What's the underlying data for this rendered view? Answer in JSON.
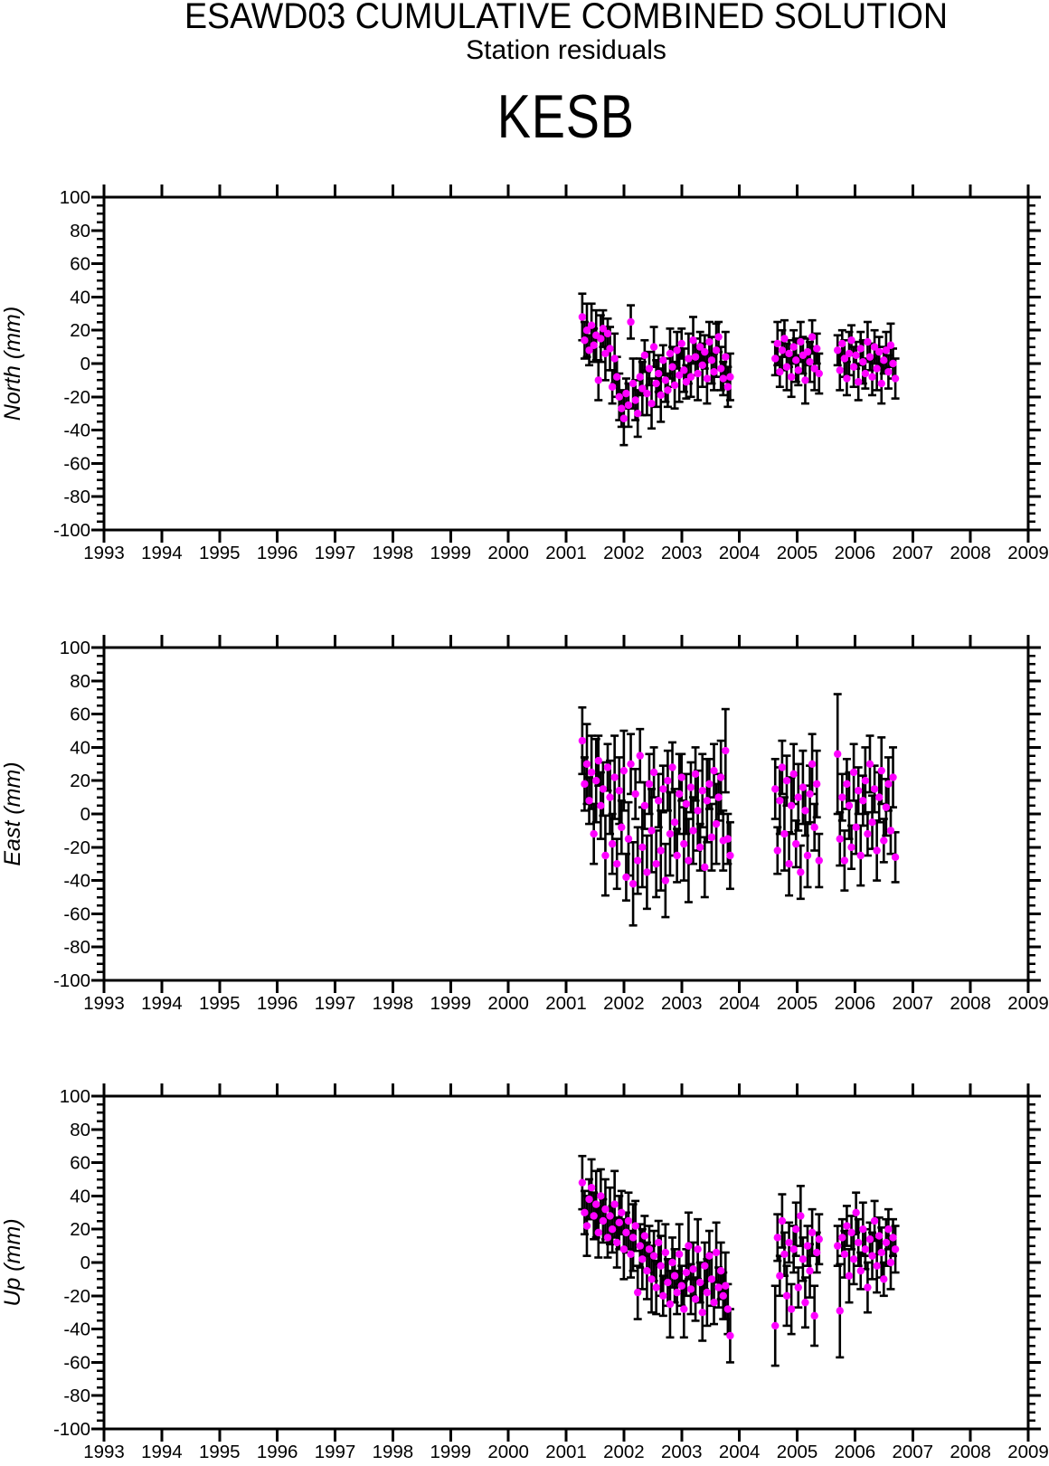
{
  "header": {
    "title": "ESAWD03 CUMULATIVE COMBINED SOLUTION",
    "subtitle": "Station residuals",
    "station": "KESB"
  },
  "colors": {
    "marker": "#ff00ff",
    "axis": "#000000",
    "background": "#ffffff"
  },
  "axes": {
    "xlim": [
      1993,
      2009
    ],
    "ylim": [
      -100,
      100
    ],
    "years": [
      1993,
      1994,
      1995,
      1996,
      1997,
      1998,
      1999,
      2000,
      2001,
      2002,
      2003,
      2004,
      2005,
      2006,
      2007,
      2008,
      2009
    ],
    "yticks": [
      -100,
      -80,
      -60,
      -40,
      -20,
      0,
      20,
      40,
      60,
      80,
      100
    ],
    "ytick_step": 20,
    "yminor_step": 5,
    "grid": "off",
    "legend": "none"
  },
  "chart_data": [
    {
      "type": "scatter",
      "id": "north",
      "ylabel": "North (mm)",
      "units": "mm",
      "marker": "circle-with-errorbar",
      "clusters": [
        {
          "t0": 2001.28,
          "dt": 0.04,
          "values": [
            28,
            14,
            20,
            8,
            23,
            11,
            17,
            -10,
            15,
            21,
            6,
            18,
            9,
            -14,
            3,
            -8,
            -20,
            -27,
            -33,
            -18,
            -25,
            25,
            -12,
            -22,
            -30,
            -8,
            -15,
            5,
            -18,
            -3,
            -24,
            10,
            -12,
            -6,
            -19,
            2,
            -10,
            -16,
            6,
            -2,
            -13,
            8,
            -7,
            12,
            -4,
            -11,
            3,
            -8,
            14,
            4,
            -6,
            10,
            -1,
            7,
            -9,
            13,
            2,
            -5,
            8,
            16,
            -3,
            -9,
            4,
            -14,
            -8
          ],
          "sigmas": [
            14,
            11,
            16,
            9,
            13,
            10,
            15,
            12,
            14,
            11,
            16,
            9,
            13,
            10,
            15,
            12,
            14,
            11,
            16,
            9,
            13,
            10,
            15,
            12,
            14,
            11,
            16,
            9,
            13,
            10,
            15,
            12,
            14,
            11,
            16,
            9,
            13,
            10,
            15,
            12,
            14,
            11,
            16,
            9,
            13,
            10,
            15,
            12,
            14,
            11,
            16,
            9,
            13,
            10,
            15,
            12,
            14,
            11,
            16,
            9,
            13,
            10,
            15,
            12,
            14
          ]
        },
        {
          "t0": 2004.62,
          "dt": 0.04,
          "values": [
            3,
            12,
            -5,
            8,
            15,
            -2,
            6,
            -8,
            10,
            2,
            -4,
            13,
            5,
            -10,
            7,
            1,
            16,
            -3,
            9,
            -6
          ],
          "sigmas": [
            10,
            13,
            9,
            12,
            11,
            14,
            8,
            12,
            10,
            13,
            9,
            12,
            11,
            14,
            8,
            12,
            10,
            13,
            9,
            12
          ]
        },
        {
          "t0": 2005.7,
          "dt": 0.04,
          "values": [
            8,
            -4,
            12,
            3,
            -9,
            6,
            14,
            -2,
            5,
            -11,
            9,
            1,
            -6,
            13,
            4,
            -8,
            10,
            -3,
            7,
            -12,
            2,
            8,
            -5,
            11,
            0,
            -9
          ],
          "sigmas": [
            9,
            12,
            8,
            11,
            10,
            13,
            9,
            12,
            8,
            11,
            10,
            13,
            9,
            12,
            8,
            11,
            10,
            13,
            9,
            12,
            8,
            11,
            10,
            13,
            9,
            12
          ]
        }
      ]
    },
    {
      "type": "scatter",
      "id": "east",
      "ylabel": "East (mm)",
      "units": "mm",
      "marker": "circle-with-errorbar",
      "clusters": [
        {
          "t0": 2001.28,
          "dt": 0.04,
          "values": [
            44,
            18,
            30,
            8,
            25,
            -12,
            20,
            32,
            5,
            15,
            -25,
            28,
            10,
            -18,
            22,
            -30,
            14,
            -8,
            26,
            -38,
            -15,
            30,
            -42,
            12,
            -28,
            35,
            -20,
            5,
            -35,
            18,
            -10,
            25,
            -30,
            8,
            -22,
            15,
            -40,
            20,
            -12,
            28,
            -5,
            -25,
            12,
            22,
            -18,
            6,
            -28,
            16,
            -10,
            24,
            2,
            -20,
            14,
            -32,
            8,
            18,
            -14,
            26,
            -6,
            10,
            22,
            -16,
            38,
            -15,
            -25
          ],
          "sigmas": [
            20,
            16,
            24,
            14,
            22,
            18,
            25,
            15,
            20,
            16,
            24,
            14,
            22,
            18,
            25,
            15,
            20,
            16,
            24,
            14,
            22,
            18,
            25,
            15,
            20,
            16,
            24,
            14,
            22,
            18,
            25,
            15,
            20,
            16,
            24,
            14,
            22,
            18,
            25,
            15,
            20,
            16,
            24,
            14,
            22,
            18,
            25,
            15,
            20,
            16,
            24,
            14,
            22,
            18,
            25,
            15,
            20,
            16,
            24,
            14,
            22,
            18,
            25,
            15,
            20
          ]
        },
        {
          "t0": 2004.62,
          "dt": 0.04,
          "values": [
            15,
            -22,
            8,
            28,
            -12,
            20,
            -30,
            5,
            24,
            -18,
            10,
            -35,
            16,
            2,
            -25,
            12,
            30,
            -8,
            18,
            -28
          ],
          "sigmas": [
            18,
            14,
            20,
            16,
            22,
            15,
            19,
            17,
            18,
            14,
            20,
            16,
            22,
            15,
            19,
            17,
            18,
            14,
            20,
            16
          ]
        },
        {
          "t0": 2005.7,
          "dt": 0.04,
          "values": [
            36,
            -15,
            10,
            -28,
            18,
            5,
            -20,
            25,
            -8,
            14,
            -25,
            8,
            20,
            -12,
            30,
            -5,
            15,
            -22,
            10,
            26,
            -16,
            4,
            18,
            -10,
            22,
            -26
          ],
          "sigmas": [
            36,
            16,
            14,
            18,
            15,
            20,
            13,
            17,
            16,
            14,
            18,
            15,
            20,
            13,
            17,
            16,
            14,
            18,
            15,
            20,
            13,
            17,
            16,
            14,
            18,
            15
          ]
        }
      ]
    },
    {
      "type": "scatter",
      "id": "up",
      "ylabel": "Up (mm)",
      "units": "mm",
      "marker": "circle-with-errorbar",
      "clusters": [
        {
          "t0": 2001.28,
          "dt": 0.04,
          "values": [
            48,
            30,
            22,
            38,
            45,
            28,
            35,
            18,
            40,
            25,
            32,
            15,
            28,
            20,
            35,
            12,
            24,
            30,
            8,
            18,
            25,
            5,
            15,
            22,
            -18,
            10,
            2,
            16,
            -5,
            8,
            -10,
            4,
            -15,
            12,
            -2,
            -20,
            6,
            -12,
            -25,
            0,
            -8,
            -18,
            5,
            -14,
            -28,
            -6,
            10,
            -16,
            -4,
            -22,
            8,
            -12,
            -30,
            -2,
            -18,
            4,
            -10,
            -24,
            6,
            -15,
            -5,
            -20,
            -14,
            -28,
            -44
          ],
          "sigmas": [
            16,
            13,
            18,
            12,
            17,
            14,
            20,
            15,
            16,
            13,
            18,
            12,
            17,
            14,
            20,
            15,
            16,
            13,
            18,
            12,
            17,
            14,
            20,
            15,
            16,
            13,
            18,
            12,
            17,
            14,
            20,
            15,
            16,
            13,
            18,
            12,
            17,
            14,
            20,
            15,
            16,
            13,
            18,
            12,
            17,
            14,
            20,
            15,
            16,
            13,
            18,
            12,
            17,
            14,
            20,
            15,
            16,
            13,
            18,
            12,
            17,
            14,
            20,
            15,
            16
          ]
        },
        {
          "t0": 2004.62,
          "dt": 0.04,
          "values": [
            -38,
            15,
            -8,
            25,
            5,
            -20,
            12,
            -28,
            8,
            20,
            -15,
            28,
            2,
            -24,
            10,
            -5,
            18,
            -32,
            6,
            14
          ],
          "sigmas": [
            24,
            14,
            12,
            16,
            13,
            18,
            12,
            15,
            14,
            16,
            12,
            18,
            13,
            15,
            12,
            16,
            14,
            18,
            12,
            15
          ]
        },
        {
          "t0": 2005.7,
          "dt": 0.04,
          "values": [
            10,
            -29,
            15,
            5,
            22,
            -8,
            18,
            2,
            30,
            12,
            -5,
            20,
            8,
            -15,
            14,
            4,
            25,
            -2,
            16,
            6,
            -10,
            12,
            20,
            0,
            15,
            8
          ],
          "sigmas": [
            12,
            28,
            11,
            14,
            12,
            16,
            10,
            15,
            12,
            14,
            11,
            16,
            12,
            15,
            10,
            14,
            12,
            16,
            11,
            15,
            10,
            14,
            12,
            16,
            11,
            14
          ]
        }
      ]
    }
  ]
}
